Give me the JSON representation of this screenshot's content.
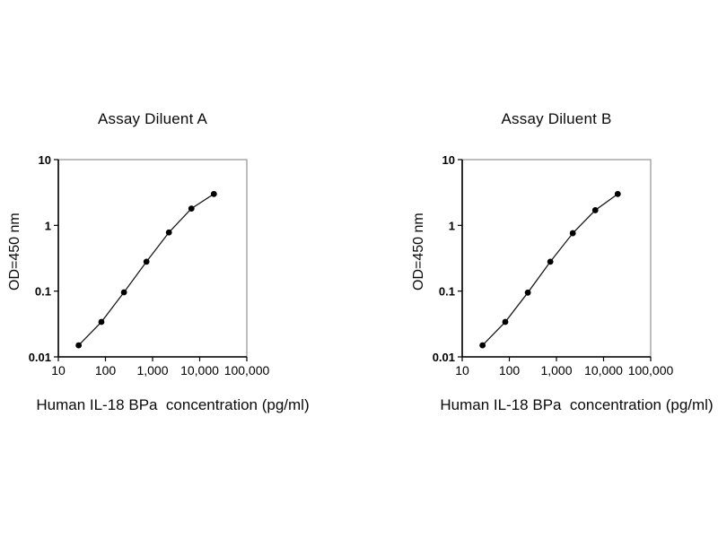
{
  "page": {
    "background": "#ffffff",
    "text_color": "#000000"
  },
  "chart_data": [
    {
      "type": "line",
      "title": "Assay Diluent A",
      "xlabel": "Human IL-18 BPa  concentration (pg/ml)",
      "ylabel": "OD=450 nm",
      "x_scale": "log",
      "y_scale": "log",
      "xlim": [
        10,
        100000
      ],
      "ylim": [
        0.01,
        10
      ],
      "x": [
        27,
        82,
        247,
        741,
        2222,
        6667,
        20000
      ],
      "y": [
        0.015,
        0.034,
        0.096,
        0.28,
        0.78,
        1.8,
        3.0
      ],
      "x_tick_values": [
        10,
        100,
        1000,
        10000,
        100000
      ],
      "x_tick_labels": [
        "10",
        "100",
        "1,000",
        "10,000",
        "100,000"
      ],
      "y_tick_values": [
        10,
        1,
        0.1,
        0.01
      ],
      "y_tick_labels": [
        "10",
        "1",
        "0.1",
        "0.01"
      ],
      "marker": "filled-circle",
      "line_color": "#1a1a1a",
      "marker_color": "#000000",
      "plot_border_color": "#9a9a9a",
      "axis_color": "#000000",
      "grid": false,
      "legend": null
    },
    {
      "type": "line",
      "title": "Assay Diluent B",
      "xlabel": "Human IL-18 BPa  concentration (pg/ml)",
      "ylabel": "OD=450 nm",
      "x_scale": "log",
      "y_scale": "log",
      "xlim": [
        10,
        100000
      ],
      "ylim": [
        0.01,
        10
      ],
      "x": [
        27,
        82,
        247,
        741,
        2222,
        6667,
        20000
      ],
      "y": [
        0.015,
        0.034,
        0.095,
        0.28,
        0.76,
        1.7,
        3.0
      ],
      "x_tick_values": [
        10,
        100,
        1000,
        10000,
        100000
      ],
      "x_tick_labels": [
        "10",
        "100",
        "1,000",
        "10,000",
        "100,000"
      ],
      "y_tick_values": [
        10,
        1,
        0.1,
        0.01
      ],
      "y_tick_labels": [
        "10",
        "1",
        "0.1",
        "0.01"
      ],
      "marker": "filled-circle",
      "line_color": "#1a1a1a",
      "marker_color": "#000000",
      "plot_border_color": "#9a9a9a",
      "axis_color": "#000000",
      "grid": false,
      "legend": null
    }
  ]
}
